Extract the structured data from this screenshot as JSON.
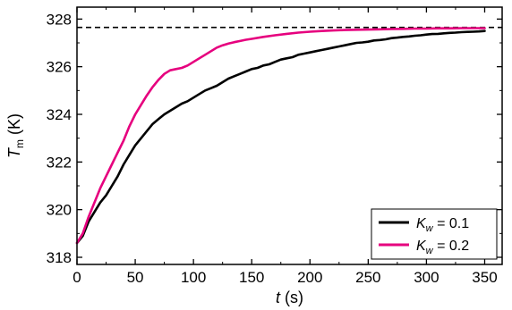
{
  "chart_data": {
    "type": "line",
    "xlabel": {
      "var": "t",
      "unit": " (s)"
    },
    "ylabel": {
      "var": "T",
      "sub": "m",
      "unit": " (K)"
    },
    "xlim": [
      0,
      365
    ],
    "ylim": [
      317.7,
      328.5
    ],
    "xticks": [
      0,
      50,
      100,
      150,
      200,
      250,
      300,
      350
    ],
    "yticks": [
      318,
      320,
      322,
      324,
      326,
      328
    ],
    "grid": false,
    "legend_position": "bottom-right",
    "reference_line": {
      "y": 327.65,
      "style": "dashed",
      "color": "#000000"
    },
    "series": [
      {
        "name": {
          "var": "K",
          "sub": "w",
          "rest": " = 0.1"
        },
        "color": "#000000",
        "points": [
          [
            0,
            318.6
          ],
          [
            5,
            318.9
          ],
          [
            10,
            319.5
          ],
          [
            15,
            319.9
          ],
          [
            20,
            320.3
          ],
          [
            25,
            320.6
          ],
          [
            30,
            321.0
          ],
          [
            35,
            321.4
          ],
          [
            40,
            321.9
          ],
          [
            45,
            322.3
          ],
          [
            50,
            322.7
          ],
          [
            55,
            323.0
          ],
          [
            60,
            323.3
          ],
          [
            65,
            323.6
          ],
          [
            70,
            323.8
          ],
          [
            75,
            324.0
          ],
          [
            80,
            324.15
          ],
          [
            85,
            324.3
          ],
          [
            90,
            324.45
          ],
          [
            95,
            324.55
          ],
          [
            100,
            324.7
          ],
          [
            105,
            324.85
          ],
          [
            110,
            325.0
          ],
          [
            115,
            325.1
          ],
          [
            120,
            325.2
          ],
          [
            125,
            325.35
          ],
          [
            130,
            325.5
          ],
          [
            135,
            325.6
          ],
          [
            140,
            325.7
          ],
          [
            145,
            325.8
          ],
          [
            150,
            325.9
          ],
          [
            155,
            325.95
          ],
          [
            160,
            326.05
          ],
          [
            165,
            326.1
          ],
          [
            170,
            326.2
          ],
          [
            175,
            326.3
          ],
          [
            180,
            326.35
          ],
          [
            185,
            326.4
          ],
          [
            190,
            326.5
          ],
          [
            195,
            326.55
          ],
          [
            200,
            326.6
          ],
          [
            205,
            326.65
          ],
          [
            210,
            326.7
          ],
          [
            215,
            326.75
          ],
          [
            220,
            326.8
          ],
          [
            225,
            326.85
          ],
          [
            230,
            326.9
          ],
          [
            235,
            326.95
          ],
          [
            240,
            327.0
          ],
          [
            245,
            327.02
          ],
          [
            250,
            327.05
          ],
          [
            255,
            327.1
          ],
          [
            260,
            327.12
          ],
          [
            265,
            327.15
          ],
          [
            270,
            327.2
          ],
          [
            275,
            327.22
          ],
          [
            280,
            327.25
          ],
          [
            285,
            327.27
          ],
          [
            290,
            327.3
          ],
          [
            295,
            327.32
          ],
          [
            300,
            327.35
          ],
          [
            305,
            327.37
          ],
          [
            310,
            327.38
          ],
          [
            315,
            327.4
          ],
          [
            320,
            327.42
          ],
          [
            325,
            327.43
          ],
          [
            330,
            327.45
          ],
          [
            335,
            327.46
          ],
          [
            340,
            327.47
          ],
          [
            345,
            327.48
          ],
          [
            350,
            327.5
          ]
        ]
      },
      {
        "name": {
          "var": "K",
          "sub": "w",
          "rest": " = 0.2"
        },
        "color": "#e6007e",
        "points": [
          [
            0,
            318.6
          ],
          [
            5,
            319.0
          ],
          [
            10,
            319.7
          ],
          [
            15,
            320.3
          ],
          [
            20,
            320.9
          ],
          [
            25,
            321.4
          ],
          [
            30,
            321.9
          ],
          [
            35,
            322.4
          ],
          [
            40,
            322.9
          ],
          [
            45,
            323.5
          ],
          [
            50,
            324.0
          ],
          [
            55,
            324.4
          ],
          [
            60,
            324.8
          ],
          [
            65,
            325.15
          ],
          [
            70,
            325.45
          ],
          [
            75,
            325.7
          ],
          [
            80,
            325.85
          ],
          [
            85,
            325.9
          ],
          [
            90,
            325.95
          ],
          [
            95,
            326.05
          ],
          [
            100,
            326.2
          ],
          [
            105,
            326.35
          ],
          [
            110,
            326.5
          ],
          [
            115,
            326.65
          ],
          [
            120,
            326.8
          ],
          [
            125,
            326.9
          ],
          [
            130,
            326.97
          ],
          [
            135,
            327.03
          ],
          [
            140,
            327.08
          ],
          [
            145,
            327.13
          ],
          [
            150,
            327.17
          ],
          [
            160,
            327.25
          ],
          [
            170,
            327.32
          ],
          [
            180,
            327.38
          ],
          [
            190,
            327.43
          ],
          [
            200,
            327.47
          ],
          [
            210,
            327.5
          ],
          [
            220,
            327.52
          ],
          [
            230,
            327.54
          ],
          [
            240,
            327.55
          ],
          [
            250,
            327.56
          ],
          [
            260,
            327.57
          ],
          [
            270,
            327.58
          ],
          [
            280,
            327.59
          ],
          [
            290,
            327.6
          ],
          [
            300,
            327.6
          ],
          [
            310,
            327.61
          ],
          [
            320,
            327.61
          ],
          [
            330,
            327.62
          ],
          [
            340,
            327.62
          ],
          [
            350,
            327.62
          ]
        ]
      }
    ]
  }
}
